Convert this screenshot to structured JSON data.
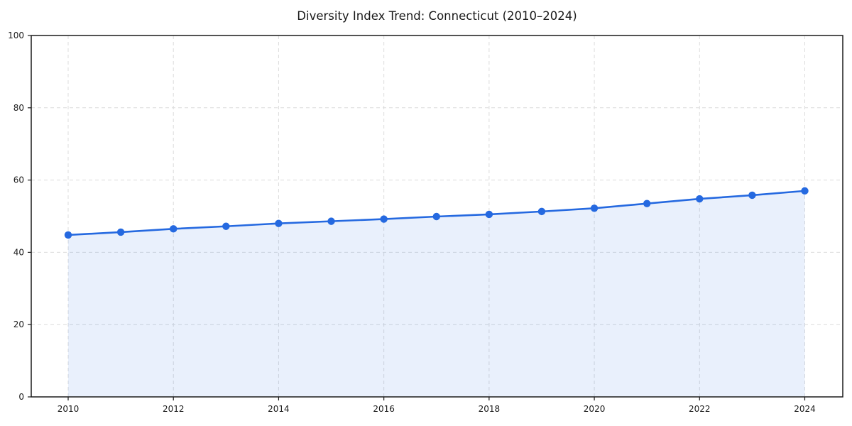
{
  "chart_data": {
    "type": "line",
    "title": "Diversity Index Trend: Connecticut (2010–2024)",
    "xlabel": "",
    "ylabel": "",
    "x": [
      2010,
      2011,
      2012,
      2013,
      2014,
      2015,
      2016,
      2017,
      2018,
      2019,
      2020,
      2021,
      2022,
      2023,
      2024
    ],
    "series": [
      {
        "name": "Diversity Index",
        "values": [
          44.8,
          45.6,
          46.5,
          47.2,
          48.0,
          48.6,
          49.2,
          49.9,
          50.5,
          51.3,
          52.2,
          53.5,
          54.8,
          55.8,
          57.0
        ]
      }
    ],
    "ylim": [
      0,
      100
    ],
    "yticks": [
      0,
      20,
      40,
      60,
      80,
      100
    ],
    "xticks": [
      2010,
      2012,
      2014,
      2016,
      2018,
      2020,
      2022,
      2024
    ],
    "grid": "dashed",
    "legend": "none",
    "area_fill": true,
    "markers": true,
    "colors": {
      "line": "#2569e0",
      "marker": "#2569e0",
      "area": "rgba(37,105,224,0.10)",
      "grid": "#dcdcdc",
      "spine": "#1a1a1a",
      "tick_text": "#1a1a1a",
      "background": "#ffffff"
    }
  }
}
